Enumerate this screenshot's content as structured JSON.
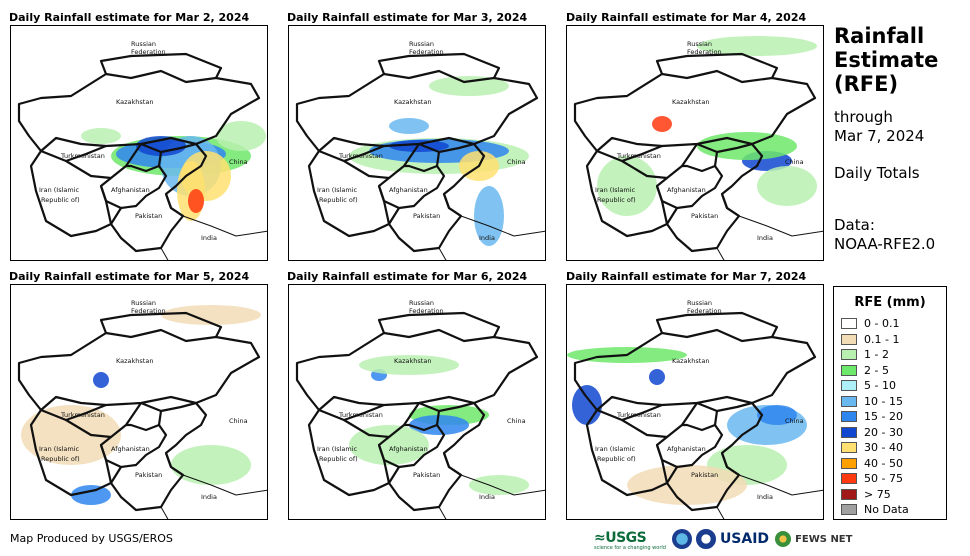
{
  "panels": [
    {
      "title": "Daily Rainfall estimate for Mar 2, 2024"
    },
    {
      "title": "Daily Rainfall estimate for Mar 3, 2024"
    },
    {
      "title": "Daily Rainfall estimate for Mar 4, 2024"
    },
    {
      "title": "Daily Rainfall estimate for Mar 5, 2024"
    },
    {
      "title": "Daily Rainfall estimate for Mar 6, 2024"
    },
    {
      "title": "Daily Rainfall estimate for Mar 7, 2024"
    }
  ],
  "map_labels": {
    "russia1": "Russian",
    "russia2": "Federation",
    "kazakhstan": "Kazakhstan",
    "turkmenistan": "Turkmenistan",
    "china": "China",
    "iran1": "Iran  (Islamic",
    "iran2": "Republic of)",
    "afghanistan": "Afghanistan",
    "pakistan": "Pakistan",
    "india": "India"
  },
  "side": {
    "title_line1": "Rainfall",
    "title_line2": "Estimate",
    "title_line3": "(RFE)",
    "through": "through",
    "date": "Mar 7, 2024",
    "totals": "Daily Totals",
    "data_label": "Data:",
    "data_source": "NOAA-RFE2.0"
  },
  "legend": {
    "title": "RFE (mm)",
    "items": [
      {
        "label": "0 - 0.1",
        "color": "#ffffff"
      },
      {
        "label": "0.1 - 1",
        "color": "#f2dcb6"
      },
      {
        "label": "1 - 2",
        "color": "#b8f0b0"
      },
      {
        "label": "2 - 5",
        "color": "#6ee86a"
      },
      {
        "label": "5 - 10",
        "color": "#aef0f8"
      },
      {
        "label": "10 - 15",
        "color": "#6ab8f0"
      },
      {
        "label": "15 - 20",
        "color": "#2f86ef"
      },
      {
        "label": "20 - 30",
        "color": "#1146d0"
      },
      {
        "label": "30 - 40",
        "color": "#ffe070"
      },
      {
        "label": "40 - 50",
        "color": "#ffa000"
      },
      {
        "label": "50 - 75",
        "color": "#ff3a10"
      },
      {
        "label": "> 75",
        "color": "#a01818"
      },
      {
        "label": "No Data",
        "color": "#a0a0a0"
      }
    ]
  },
  "footer": "Map Produced by USGS/EROS",
  "logos": {
    "usgs": "≈USGS",
    "usgs_tag": "science for a changing world",
    "usaid": "USAID",
    "fews": "FEWS NET"
  }
}
